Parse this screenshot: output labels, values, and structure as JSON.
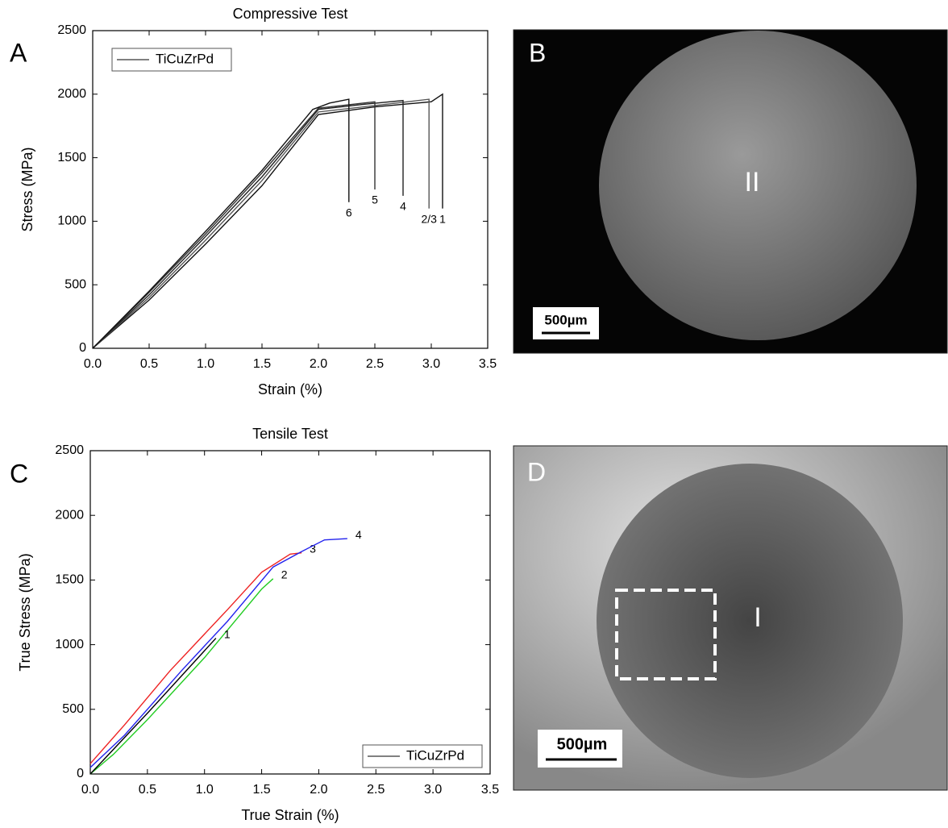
{
  "chart_data": [
    {
      "type": "line",
      "panel_label": "A",
      "title": "Compressive Test",
      "xlabel": "Strain (%)",
      "ylabel": "Stress (MPa)",
      "xlim": [
        0,
        3.5
      ],
      "ylim": [
        0,
        2500
      ],
      "xticks": [
        {
          "value": 0,
          "label": "0.0"
        },
        {
          "value": 0.5,
          "label": "0.5"
        },
        {
          "value": 1,
          "label": "1.0"
        },
        {
          "value": 1.5,
          "label": "1.5"
        },
        {
          "value": 2,
          "label": "2.0"
        },
        {
          "value": 2.5,
          "label": "2.5"
        },
        {
          "value": 3,
          "label": "3.0"
        },
        {
          "value": 3.5,
          "label": "3.5"
        }
      ],
      "yticks": [
        0,
        500,
        1000,
        1500,
        2000,
        2500
      ],
      "legend": {
        "label": "TiCuZrPd",
        "loc": "upper left",
        "color": "#000000"
      },
      "series_labels": "below",
      "series": [
        {
          "name": "1",
          "color": "#111111",
          "x": [
            0,
            0.5,
            1.0,
            1.5,
            2.0,
            2.5,
            3.0,
            3.1,
            3.1
          ],
          "values": [
            0,
            380,
            820,
            1280,
            1840,
            1900,
            1940,
            2000,
            1100
          ]
        },
        {
          "name": "2/3",
          "color": "#555555",
          "x": [
            0,
            0.5,
            1.0,
            1.5,
            2.0,
            2.5,
            2.98,
            2.98
          ],
          "values": [
            0,
            400,
            850,
            1320,
            1860,
            1910,
            1960,
            1100
          ]
        },
        {
          "name": "4",
          "color": "#222222",
          "x": [
            0,
            0.5,
            1.0,
            1.5,
            2.0,
            2.4,
            2.75,
            2.75
          ],
          "values": [
            0,
            420,
            880,
            1350,
            1880,
            1920,
            1950,
            1200
          ]
        },
        {
          "name": "5",
          "color": "#333333",
          "x": [
            0,
            0.5,
            1.0,
            1.5,
            2.0,
            2.3,
            2.5,
            2.5
          ],
          "values": [
            0,
            440,
            900,
            1380,
            1890,
            1920,
            1940,
            1250
          ]
        },
        {
          "name": "6",
          "color": "#111111",
          "x": [
            0,
            0.5,
            1.0,
            1.5,
            1.95,
            2.1,
            2.27,
            2.27
          ],
          "values": [
            0,
            450,
            920,
            1400,
            1880,
            1930,
            1960,
            1150
          ]
        }
      ]
    },
    {
      "type": "line",
      "panel_label": "C",
      "title": "Tensile Test",
      "xlabel": "True Strain (%)",
      "ylabel": "True Stress (MPa)",
      "xlim": [
        0,
        3.5
      ],
      "ylim": [
        0,
        2500
      ],
      "xticks": [
        {
          "value": 0,
          "label": "0.0"
        },
        {
          "value": 0.5,
          "label": "0.5"
        },
        {
          "value": 1,
          "label": "1.0"
        },
        {
          "value": 1.5,
          "label": "1.5"
        },
        {
          "value": 2,
          "label": "2.0"
        },
        {
          "value": 2.5,
          "label": "2.5"
        },
        {
          "value": 3,
          "label": "3.0"
        },
        {
          "value": 3.5,
          "label": "3.5"
        }
      ],
      "yticks": [
        0,
        500,
        1000,
        1500,
        2000,
        2500
      ],
      "legend": {
        "label": "TiCuZrPd",
        "loc": "lower right",
        "color": "#000000"
      },
      "series_labels": "right",
      "series": [
        {
          "name": "2",
          "color": "#22cc22",
          "x": [
            0,
            0.2,
            0.5,
            1.0,
            1.5,
            1.6
          ],
          "values": [
            0,
            150,
            420,
            900,
            1430,
            1510
          ]
        },
        {
          "name": "3",
          "color": "#ee2222",
          "x": [
            0,
            0.3,
            0.7,
            1.2,
            1.5,
            1.75,
            1.85
          ],
          "values": [
            80,
            380,
            800,
            1270,
            1560,
            1700,
            1710
          ]
        },
        {
          "name": "4",
          "color": "#2222ee",
          "x": [
            0,
            0.3,
            0.8,
            1.2,
            1.6,
            1.85,
            2.05,
            2.25
          ],
          "values": [
            50,
            300,
            800,
            1180,
            1600,
            1720,
            1810,
            1820
          ]
        },
        {
          "name": "1",
          "color": "#000000",
          "x": [
            0,
            0.5,
            1.1
          ],
          "values": [
            0,
            470,
            1050
          ]
        }
      ]
    }
  ],
  "images": [
    {
      "panel_label": "B",
      "region_label": "II",
      "scale_bar": "500µm"
    },
    {
      "panel_label": "D",
      "region_label": "I",
      "scale_bar": "500µm"
    }
  ]
}
